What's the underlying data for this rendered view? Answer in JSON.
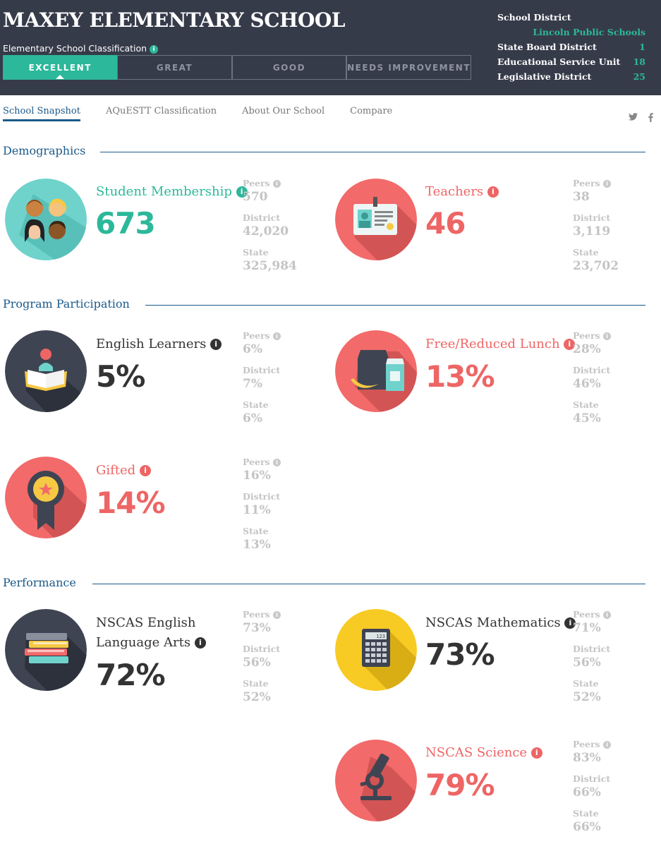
{
  "header": {
    "school_name": "MAXEY ELEMENTARY SCHOOL",
    "classification_label": "Elementary School Classification",
    "ratings": [
      "EXCELLENT",
      "GREAT",
      "GOOD",
      "NEEDS IMPROVEMENT"
    ],
    "active_rating": "EXCELLENT",
    "district_info": {
      "school_district_label": "School District",
      "school_district_value": "Lincoln Public Schools",
      "state_board_label": "State Board District",
      "state_board_value": "1",
      "esu_label": "Educational Service Unit",
      "esu_value": "18",
      "legislative_label": "Legislative District",
      "legislative_value": "25"
    }
  },
  "nav": {
    "items": [
      "School Snapshot",
      "AQuESTT Classification",
      "About Our School",
      "Compare"
    ],
    "active": "School Snapshot",
    "social": [
      "twitter-icon",
      "facebook-icon"
    ]
  },
  "comparison_labels": {
    "peers": "Peers",
    "district": "District",
    "state": "State"
  },
  "sections": {
    "demographics": "Demographics",
    "program": "Program Participation",
    "performance": "Performance"
  },
  "stats": {
    "student_membership": {
      "label": "Student Membership",
      "value": "673",
      "peers": "570",
      "district": "42,020",
      "state": "325,984",
      "color": "#2cb89a"
    },
    "teachers": {
      "label": "Teachers",
      "value": "46",
      "peers": "38",
      "district": "3,119",
      "state": "23,702",
      "color": "#ee6565"
    },
    "english_learners": {
      "label": "English Learners",
      "value": "5%",
      "peers": "6%",
      "district": "7%",
      "state": "6%",
      "color": "#333333"
    },
    "free_lunch": {
      "label": "Free/Reduced Lunch",
      "value": "13%",
      "peers": "28%",
      "district": "46%",
      "state": "45%",
      "color": "#ee6565"
    },
    "gifted": {
      "label": "Gifted",
      "value": "14%",
      "peers": "16%",
      "district": "11%",
      "state": "13%",
      "color": "#ee6565"
    },
    "nscas_ela": {
      "label_line1": "NSCAS English",
      "label_line2": "Language Arts",
      "value": "72%",
      "peers": "73%",
      "district": "56%",
      "state": "52%",
      "color": "#333333"
    },
    "nscas_math": {
      "label": "NSCAS Mathematics",
      "value": "73%",
      "peers": "71%",
      "district": "56%",
      "state": "52%",
      "color": "#333333"
    },
    "nscas_science": {
      "label": "NSCAS Science",
      "value": "79%",
      "peers": "83%",
      "district": "66%",
      "state": "66%",
      "color": "#ee6565"
    }
  },
  "calculator_display": "123"
}
